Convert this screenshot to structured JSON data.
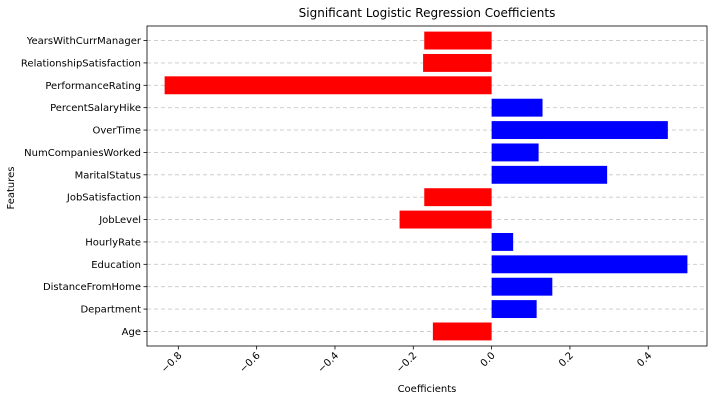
{
  "chart_data": {
    "type": "bar",
    "orientation": "horizontal",
    "title": "Significant Logistic Regression Coefficients",
    "xlabel": "Coefficients",
    "ylabel": "Features",
    "xlim": [
      -0.88,
      0.55
    ],
    "xticks": [
      -0.8,
      -0.6,
      -0.4,
      -0.2,
      0.0,
      0.2,
      0.4
    ],
    "xtick_labels": [
      "−0.8",
      "−0.6",
      "−0.4",
      "−0.2",
      "0.0",
      "0.2",
      "0.4"
    ],
    "grid": "x dashed",
    "colors": {
      "positive": "#0000ff",
      "negative": "#ff0000"
    },
    "categories": [
      "Age",
      "Department",
      "DistanceFromHome",
      "Education",
      "HourlyRate",
      "JobLevel",
      "JobSatisfaction",
      "MaritalStatus",
      "NumCompaniesWorked",
      "OverTime",
      "PercentSalaryHike",
      "PerformanceRating",
      "RelationshipSatisfaction",
      "YearsWithCurrManager"
    ],
    "values": [
      -0.15,
      0.115,
      0.155,
      0.5,
      0.055,
      -0.235,
      -0.172,
      0.295,
      0.12,
      0.45,
      0.13,
      -0.835,
      -0.175,
      -0.172
    ]
  }
}
